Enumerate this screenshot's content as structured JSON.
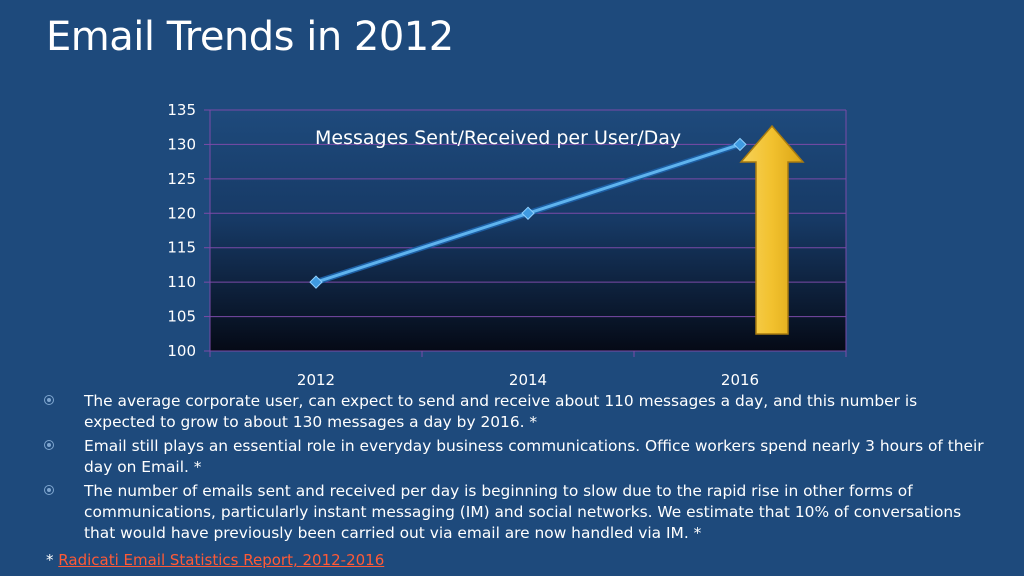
{
  "slide": {
    "title": "Email Trends in 2012"
  },
  "chart_data": {
    "type": "line",
    "annotation": "Messages Sent/Received per User/Day",
    "categories": [
      "2012",
      "2014",
      "2016"
    ],
    "series": [
      {
        "values": [
          110,
          120,
          130
        ]
      }
    ],
    "yticks": [
      "100",
      "105",
      "110",
      "115",
      "120",
      "125",
      "130",
      "135"
    ],
    "ylim": [
      100,
      135
    ],
    "grid": true,
    "colors": {
      "line": "#5fb3ee",
      "marker": "#3f9ae0",
      "arrow": "#f2c12e",
      "grid": "#7b4aa8"
    }
  },
  "bullets": [
    "The average corporate user, can expect to send and receive about 110 messages a day, and this number is expected to grow to about 130 messages a day by 2016. *",
    "Email still plays an essential role in everyday business communications. Office workers spend nearly 3 hours of their day on Email. *",
    "The number of emails sent and received per day is beginning to slow due to the rapid rise in other forms of communications, particularly instant messaging (IM) and social networks. We estimate that 10% of conversations that would have previously been carried out via email are now handled via IM. *"
  ],
  "footnote": {
    "prefix": "* ",
    "link_text": "Radicati Email Statistics Report, 2012-2016"
  }
}
